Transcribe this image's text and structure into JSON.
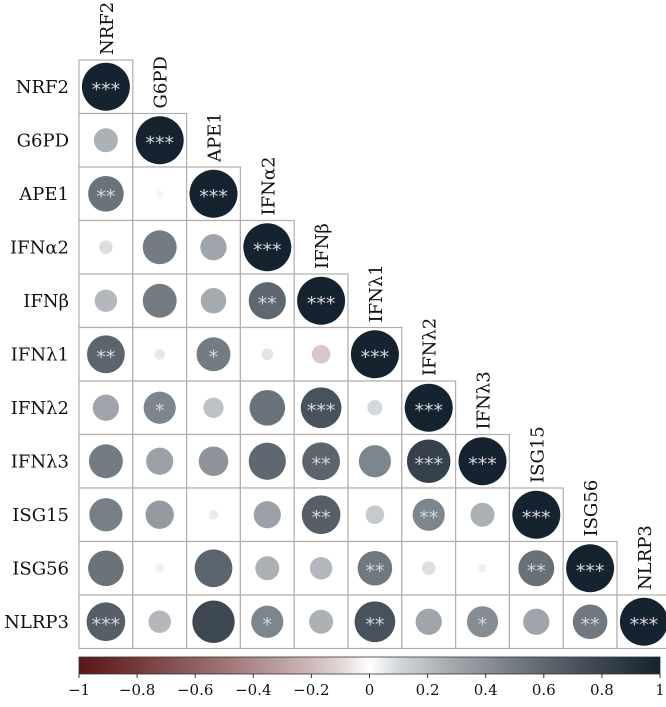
{
  "chart_data": {
    "type": "heatmap",
    "variables": [
      "NRF2",
      "G6PD",
      "APE1",
      "IFNα2",
      "IFNβ",
      "IFNλ1",
      "IFNλ2",
      "IFNλ3",
      "ISG15",
      "ISG56",
      "NLRP3"
    ],
    "rows": [
      {
        "name": "NRF2",
        "values": [
          1.0
        ],
        "stars": [
          "***"
        ]
      },
      {
        "name": "G6PD",
        "values": [
          0.25,
          1.0
        ],
        "stars": [
          "",
          "***"
        ]
      },
      {
        "name": "APE1",
        "values": [
          0.55,
          0.02,
          1.0
        ],
        "stars": [
          "**",
          "",
          "***"
        ]
      },
      {
        "name": "IFNα2",
        "values": [
          0.08,
          0.5,
          0.3,
          1.0
        ],
        "stars": [
          "",
          "",
          "",
          "***"
        ]
      },
      {
        "name": "IFNβ",
        "values": [
          0.22,
          0.5,
          0.28,
          0.6,
          1.0
        ],
        "stars": [
          "",
          "",
          "",
          "**",
          "***"
        ]
      },
      {
        "name": "IFNλ1",
        "values": [
          0.62,
          0.05,
          0.5,
          0.06,
          -0.15,
          1.0
        ],
        "stars": [
          "**",
          "",
          "*",
          "",
          "",
          "***"
        ]
      },
      {
        "name": "IFNλ2",
        "values": [
          0.3,
          0.45,
          0.18,
          0.55,
          0.72,
          0.1,
          1.0
        ],
        "stars": [
          "",
          "*",
          "",
          "",
          "***",
          "",
          "***"
        ]
      },
      {
        "name": "IFNλ3",
        "values": [
          0.5,
          0.32,
          0.38,
          0.6,
          0.62,
          0.45,
          0.82,
          1.0
        ],
        "stars": [
          "",
          "",
          "",
          "",
          "**",
          "",
          "***",
          "***"
        ]
      },
      {
        "name": "ISG15",
        "values": [
          0.48,
          0.35,
          0.04,
          0.32,
          0.65,
          0.15,
          0.45,
          0.25,
          1.0
        ],
        "stars": [
          "",
          "",
          "",
          "",
          "**",
          "",
          "**",
          "",
          "***"
        ]
      },
      {
        "name": "ISG56",
        "values": [
          0.55,
          0.03,
          0.62,
          0.25,
          0.22,
          0.52,
          0.08,
          0.03,
          0.56,
          1.0
        ],
        "stars": [
          "",
          "",
          "",
          "",
          "",
          "**",
          "",
          "",
          "**",
          "***"
        ]
      },
      {
        "name": "NLRP3",
        "values": [
          0.65,
          0.22,
          0.78,
          0.45,
          0.25,
          0.72,
          0.3,
          0.42,
          0.3,
          0.52,
          1.0
        ],
        "stars": [
          "***",
          "",
          "",
          "*",
          "",
          "**",
          "",
          "*",
          "",
          "**",
          "***"
        ]
      }
    ],
    "colorbar": {
      "ticks": [
        "−1",
        "−0.8",
        "−0.6",
        "−0.4",
        "−0.2",
        "0",
        "0.2",
        "0.4",
        "0.6",
        "0.8",
        "1"
      ],
      "range": [
        -1,
        1
      ]
    },
    "colors": {
      "negative": "#5c1616",
      "neutral": "#ffffff",
      "positive": "#15222f",
      "star": "#d9d9de",
      "cell_border": "#b5adad"
    }
  }
}
